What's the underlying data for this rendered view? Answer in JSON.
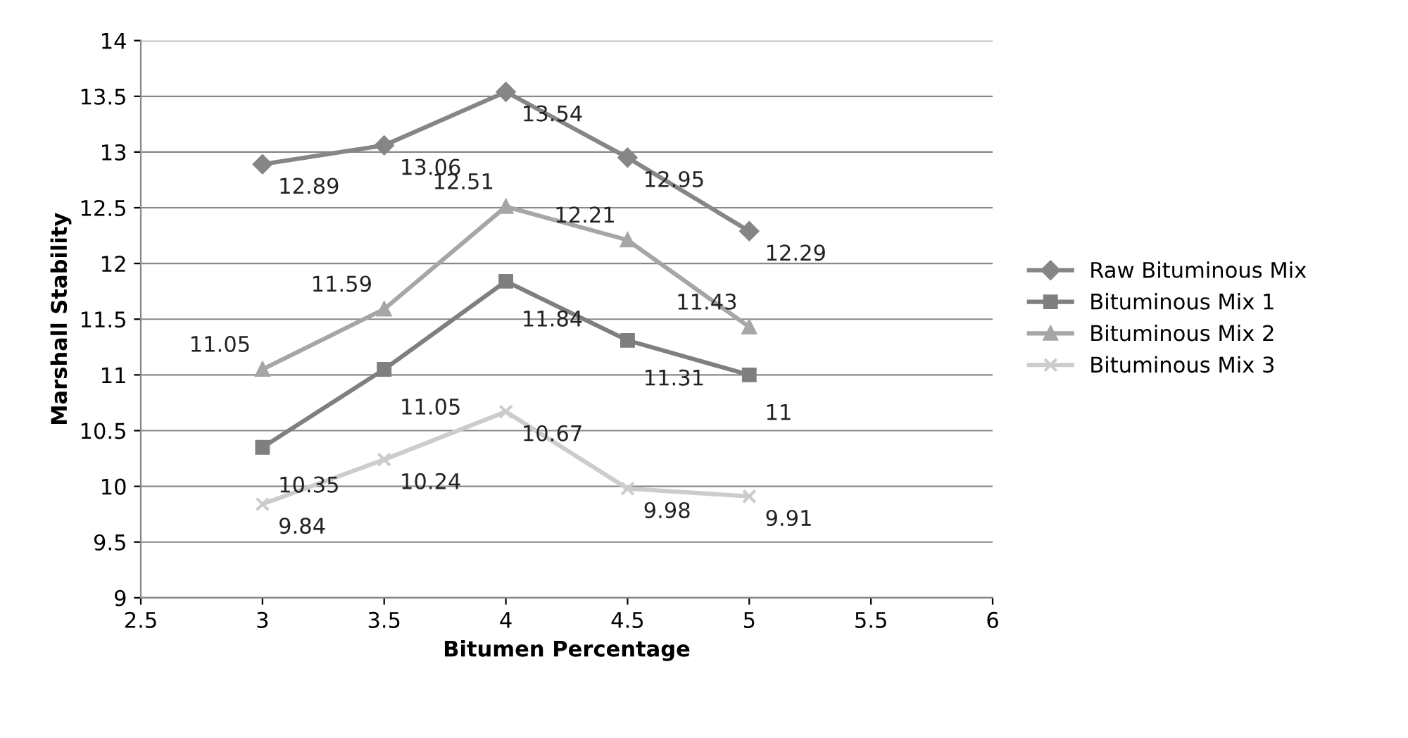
{
  "chart_data": {
    "type": "line",
    "xlabel": "Bitumen Percentage",
    "ylabel": "Marshall Stability",
    "x": [
      3,
      3.5,
      4,
      4.5,
      5
    ],
    "series": [
      {
        "name": "Raw Bituminous Mix",
        "color": "#868686",
        "marker": "diamond",
        "values": [
          12.89,
          13.06,
          13.54,
          12.95,
          12.29
        ]
      },
      {
        "name": "Bituminous Mix 1",
        "color": "#7f7f7f",
        "marker": "square",
        "values": [
          10.35,
          11.05,
          11.84,
          11.31,
          11
        ]
      },
      {
        "name": "Bituminous Mix 2",
        "color": "#a6a6a6",
        "marker": "triangle",
        "values": [
          11.05,
          11.59,
          12.51,
          12.21,
          11.43
        ]
      },
      {
        "name": "Bituminous Mix 3",
        "color": "#cccccc",
        "marker": "cross",
        "values": [
          9.84,
          10.24,
          10.67,
          9.98,
          9.91
        ]
      }
    ],
    "xlim": [
      2.5,
      6
    ],
    "xticks": [
      2.5,
      3,
      3.5,
      4,
      4.5,
      5,
      5.5,
      6
    ],
    "ylim": [
      9,
      14
    ],
    "yticks": [
      9,
      9.5,
      10,
      10.5,
      11,
      11.5,
      12,
      12.5,
      13,
      13.5,
      14
    ],
    "grid": "y",
    "legend": "right",
    "data_labels": true,
    "line_style": "solid"
  }
}
